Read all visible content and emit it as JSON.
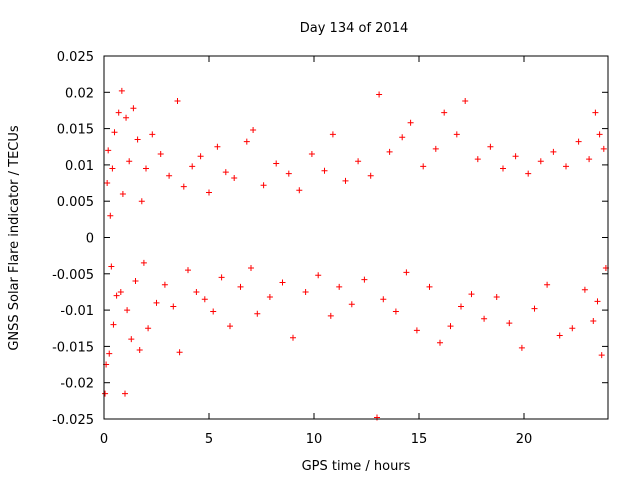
{
  "chart_data": {
    "type": "scatter",
    "title": "Day 134 of 2014",
    "xlabel": "GPS time / hours",
    "ylabel": "GNSS Solar Flare indicator / TECUs",
    "xlim": [
      0,
      24
    ],
    "ylim": [
      -0.025,
      0.025
    ],
    "x_ticks": [
      0,
      5,
      10,
      15,
      20
    ],
    "x_tick_labels": [
      "0",
      "5",
      "10",
      "15",
      "20"
    ],
    "y_ticks": [
      -0.025,
      -0.02,
      -0.015,
      -0.01,
      -0.005,
      0,
      0.005,
      0.01,
      0.015,
      0.02,
      0.025
    ],
    "y_tick_labels": [
      "-0.025",
      "-0.02",
      "-0.015",
      "-0.01",
      "-0.005",
      "0",
      "0.005",
      "0.01",
      "0.015",
      "0.02",
      "0.025"
    ],
    "grid": false,
    "legend": null,
    "series": [
      {
        "name": "GNSS Solar Flare indicator",
        "marker": "+",
        "color": "#ff0000",
        "points": [
          [
            0.05,
            -0.0215
          ],
          [
            0.1,
            -0.0175
          ],
          [
            0.15,
            0.0075
          ],
          [
            0.2,
            0.012
          ],
          [
            0.25,
            -0.016
          ],
          [
            0.3,
            0.003
          ],
          [
            0.35,
            -0.004
          ],
          [
            0.4,
            0.0095
          ],
          [
            0.45,
            -0.012
          ],
          [
            0.5,
            0.0145
          ],
          [
            0.6,
            -0.008
          ],
          [
            0.7,
            0.0172
          ],
          [
            0.8,
            -0.0075
          ],
          [
            0.85,
            0.0202
          ],
          [
            0.9,
            0.006
          ],
          [
            1.0,
            -0.0215
          ],
          [
            1.05,
            0.0165
          ],
          [
            1.1,
            -0.01
          ],
          [
            1.2,
            0.0105
          ],
          [
            1.3,
            -0.014
          ],
          [
            1.4,
            0.0178
          ],
          [
            1.5,
            -0.006
          ],
          [
            1.6,
            0.0135
          ],
          [
            1.7,
            -0.0155
          ],
          [
            1.8,
            0.005
          ],
          [
            1.9,
            -0.0035
          ],
          [
            2.0,
            0.0095
          ],
          [
            2.1,
            -0.0125
          ],
          [
            2.3,
            0.0142
          ],
          [
            2.5,
            -0.009
          ],
          [
            2.7,
            0.0115
          ],
          [
            2.9,
            -0.0065
          ],
          [
            3.1,
            0.0085
          ],
          [
            3.3,
            -0.0095
          ],
          [
            3.5,
            0.0188
          ],
          [
            3.6,
            -0.0158
          ],
          [
            3.8,
            0.007
          ],
          [
            4.0,
            -0.0045
          ],
          [
            4.2,
            0.0098
          ],
          [
            4.4,
            -0.0075
          ],
          [
            4.6,
            0.0112
          ],
          [
            4.8,
            -0.0085
          ],
          [
            5.0,
            0.0062
          ],
          [
            5.2,
            -0.0102
          ],
          [
            5.4,
            0.0125
          ],
          [
            5.6,
            -0.0055
          ],
          [
            5.8,
            0.009
          ],
          [
            6.0,
            -0.0122
          ],
          [
            6.2,
            0.0082
          ],
          [
            6.5,
            -0.0068
          ],
          [
            6.8,
            0.0132
          ],
          [
            7.0,
            -0.0042
          ],
          [
            7.1,
            0.0148
          ],
          [
            7.3,
            -0.0105
          ],
          [
            7.6,
            0.0072
          ],
          [
            7.9,
            -0.0082
          ],
          [
            8.2,
            0.0102
          ],
          [
            8.5,
            -0.0062
          ],
          [
            8.8,
            0.0088
          ],
          [
            9.0,
            -0.0138
          ],
          [
            9.3,
            0.0065
          ],
          [
            9.6,
            -0.0075
          ],
          [
            9.9,
            0.0115
          ],
          [
            10.2,
            -0.0052
          ],
          [
            10.5,
            0.0092
          ],
          [
            10.8,
            -0.0108
          ],
          [
            10.9,
            0.0142
          ],
          [
            11.2,
            -0.0068
          ],
          [
            11.5,
            0.0078
          ],
          [
            11.8,
            -0.0092
          ],
          [
            12.1,
            0.0105
          ],
          [
            12.4,
            -0.0058
          ],
          [
            12.7,
            0.0085
          ],
          [
            13.0,
            -0.0248
          ],
          [
            13.1,
            0.0197
          ],
          [
            13.3,
            -0.0085
          ],
          [
            13.6,
            0.0118
          ],
          [
            13.9,
            -0.0102
          ],
          [
            14.2,
            0.0138
          ],
          [
            14.4,
            -0.0048
          ],
          [
            14.6,
            0.0158
          ],
          [
            14.9,
            -0.0128
          ],
          [
            15.2,
            0.0098
          ],
          [
            15.5,
            -0.0068
          ],
          [
            15.8,
            0.0122
          ],
          [
            16.0,
            -0.0145
          ],
          [
            16.2,
            0.0172
          ],
          [
            16.5,
            -0.0122
          ],
          [
            16.8,
            0.0142
          ],
          [
            17.0,
            -0.0095
          ],
          [
            17.2,
            0.0188
          ],
          [
            17.5,
            -0.0078
          ],
          [
            17.8,
            0.0108
          ],
          [
            18.1,
            -0.0112
          ],
          [
            18.4,
            0.0125
          ],
          [
            18.7,
            -0.0082
          ],
          [
            19.0,
            0.0095
          ],
          [
            19.3,
            -0.0118
          ],
          [
            19.6,
            0.0112
          ],
          [
            19.9,
            -0.0152
          ],
          [
            20.2,
            0.0088
          ],
          [
            20.5,
            -0.0098
          ],
          [
            20.8,
            0.0105
          ],
          [
            21.1,
            -0.0065
          ],
          [
            21.4,
            0.0118
          ],
          [
            21.7,
            -0.0135
          ],
          [
            22.0,
            0.0098
          ],
          [
            22.3,
            -0.0125
          ],
          [
            22.6,
            0.0132
          ],
          [
            22.9,
            -0.0072
          ],
          [
            23.1,
            0.0108
          ],
          [
            23.3,
            -0.0115
          ],
          [
            23.4,
            0.0172
          ],
          [
            23.5,
            -0.0088
          ],
          [
            23.6,
            0.0142
          ],
          [
            23.7,
            -0.0162
          ],
          [
            23.8,
            0.0122
          ],
          [
            23.9,
            -0.0042
          ]
        ]
      }
    ]
  }
}
